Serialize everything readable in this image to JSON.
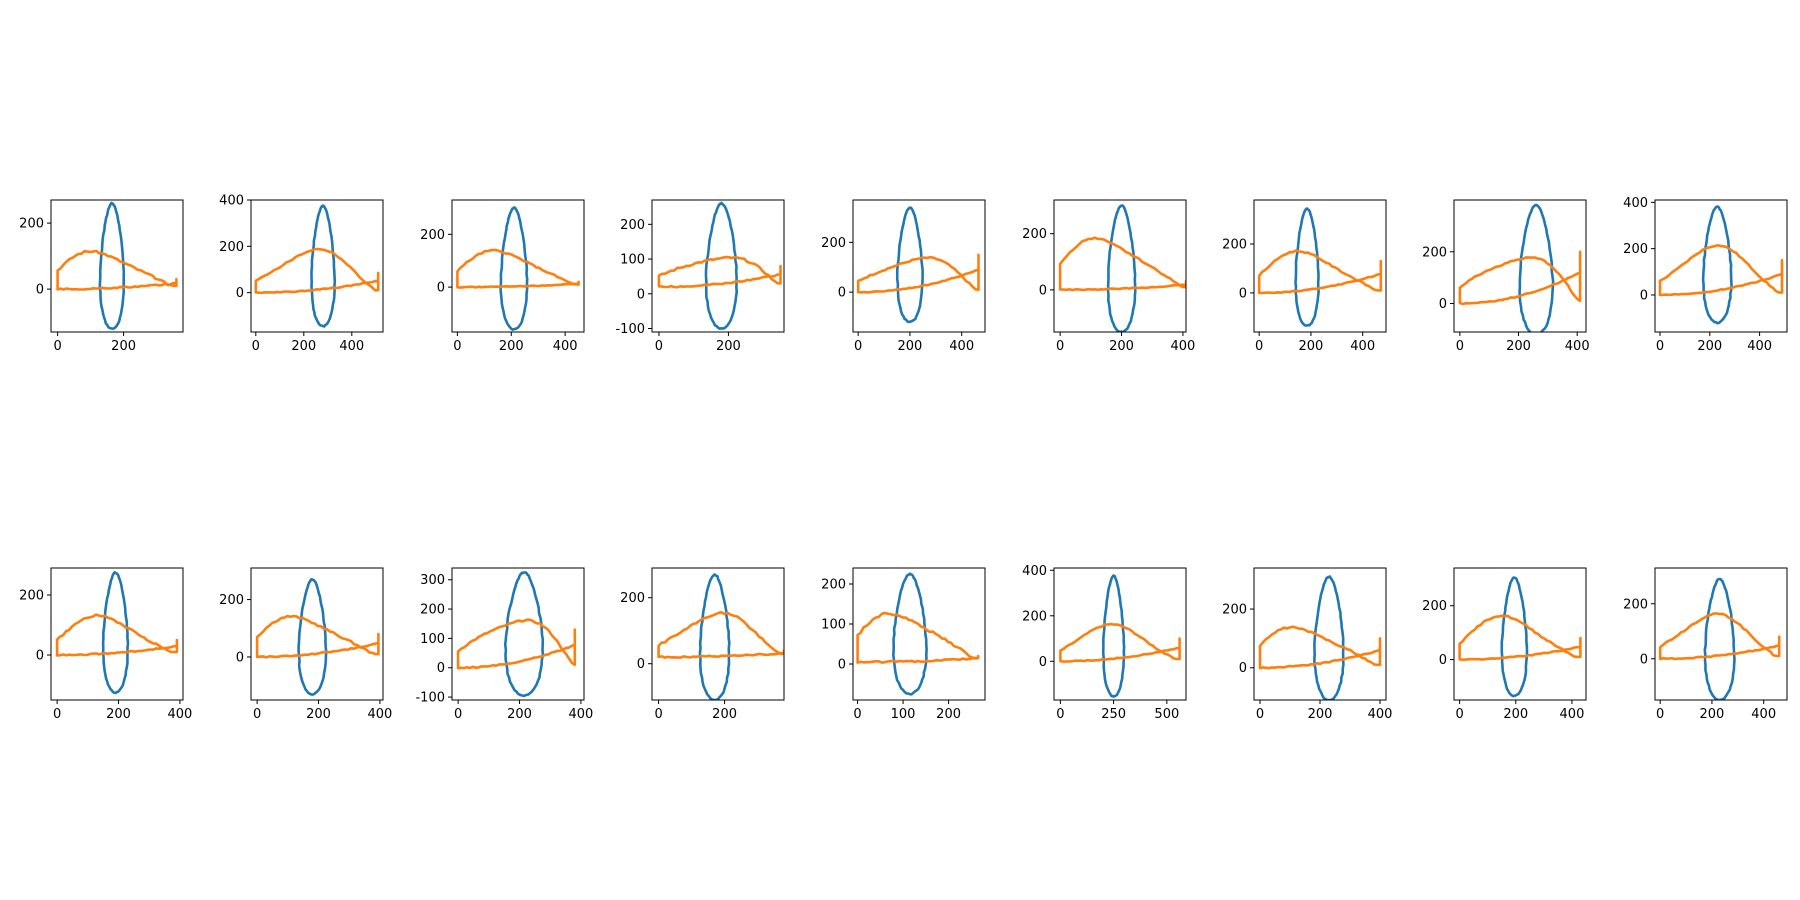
{
  "chart_data": {
    "type": "line",
    "layout": {
      "rows": 2,
      "cols": 9
    },
    "series_colors": [
      "#1f77b4",
      "#ff7f0e"
    ],
    "panels": [
      {
        "xlim": [
          -20,
          380
        ],
        "ylim": [
          -130,
          270
        ],
        "xticks": [
          0,
          200
        ],
        "yticks": [
          0,
          200
        ],
        "blue": {
          "cx": 165,
          "cy": 70,
          "rx": 45,
          "ry": 190
        },
        "orange": {
          "x0": 0,
          "x1": 360,
          "xt": 45,
          "ybase": 0,
          "ytop": 130,
          "yend": 30
        }
      },
      {
        "xlim": [
          -20,
          530
        ],
        "ylim": [
          -170,
          400
        ],
        "xticks": [
          0,
          200,
          400
        ],
        "yticks": [
          0,
          200,
          400
        ],
        "blue": {
          "cx": 280,
          "cy": 115,
          "rx": 60,
          "ry": 260
        },
        "orange": {
          "x0": 0,
          "x1": 510,
          "xt": 320,
          "ybase": 0,
          "ytop": 200,
          "yend": 85
        }
      },
      {
        "xlim": [
          -20,
          470
        ],
        "ylim": [
          -170,
          330
        ],
        "xticks": [
          0,
          200,
          400
        ],
        "yticks": [
          0,
          200
        ],
        "blue": {
          "cx": 210,
          "cy": 70,
          "rx": 60,
          "ry": 230
        },
        "orange": {
          "x0": 0,
          "x1": 450,
          "xt": 80,
          "ybase": 0,
          "ytop": 150,
          "yend": 20
        }
      },
      {
        "xlim": [
          -20,
          360
        ],
        "ylim": [
          -110,
          270
        ],
        "xticks": [
          0,
          200
        ],
        "yticks": [
          -100,
          0,
          100,
          200
        ],
        "blue": {
          "cx": 180,
          "cy": 80,
          "rx": 55,
          "ry": 180
        },
        "orange": {
          "x0": 0,
          "x1": 350,
          "xt": 310,
          "ybase": 20,
          "ytop": 140,
          "yend": 80
        }
      },
      {
        "xlim": [
          -20,
          490
        ],
        "ylim": [
          -160,
          370
        ],
        "xticks": [
          0,
          200,
          400
        ],
        "yticks": [
          0,
          200
        ],
        "blue": {
          "cx": 200,
          "cy": 110,
          "rx": 60,
          "ry": 230
        },
        "orange": {
          "x0": 0,
          "x1": 465,
          "xt": 370,
          "ybase": 0,
          "ytop": 175,
          "yend": 150
        }
      },
      {
        "xlim": [
          -20,
          410
        ],
        "ylim": [
          -150,
          320
        ],
        "xticks": [
          0,
          200,
          400
        ],
        "yticks": [
          0,
          200
        ],
        "blue": {
          "cx": 200,
          "cy": 75,
          "rx": 55,
          "ry": 225
        },
        "orange": {
          "x0": 0,
          "x1": 410,
          "xt": 50,
          "ybase": 0,
          "ytop": 210,
          "yend": 30
        }
      },
      {
        "xlim": [
          -20,
          490
        ],
        "ylim": [
          -160,
          380
        ],
        "xticks": [
          0,
          200,
          400
        ],
        "yticks": [
          0,
          200
        ],
        "blue": {
          "cx": 185,
          "cy": 105,
          "rx": 55,
          "ry": 240
        },
        "orange": {
          "x0": 0,
          "x1": 470,
          "xt": 100,
          "ybase": 0,
          "ytop": 180,
          "yend": 130
        }
      },
      {
        "xlim": [
          -20,
          430
        ],
        "ylim": [
          -110,
          400
        ],
        "xticks": [
          0,
          200,
          400
        ],
        "yticks": [
          0,
          200
        ],
        "blue": {
          "cx": 260,
          "cy": 130,
          "rx": 70,
          "ry": 250
        },
        "orange": {
          "x0": 0,
          "x1": 410,
          "xt": 360,
          "ybase": 0,
          "ytop": 250,
          "yend": 200
        }
      },
      {
        "xlim": [
          -20,
          510
        ],
        "ylim": [
          -160,
          410
        ],
        "xticks": [
          0,
          200,
          400
        ],
        "yticks": [
          0,
          200,
          400
        ],
        "blue": {
          "cx": 230,
          "cy": 130,
          "rx": 70,
          "ry": 250
        },
        "orange": {
          "x0": 0,
          "x1": 490,
          "xt": 260,
          "ybase": 0,
          "ytop": 215,
          "yend": 150
        }
      },
      {
        "xlim": [
          -20,
          410
        ],
        "ylim": [
          -150,
          290
        ],
        "xticks": [
          0,
          200,
          400
        ],
        "yticks": [
          0,
          200
        ],
        "blue": {
          "cx": 190,
          "cy": 75,
          "rx": 50,
          "ry": 200
        },
        "orange": {
          "x0": 0,
          "x1": 390,
          "xt": 100,
          "ybase": 0,
          "ytop": 135,
          "yend": 50
        }
      },
      {
        "xlim": [
          -20,
          410
        ],
        "ylim": [
          -150,
          310
        ],
        "xticks": [
          0,
          200,
          400
        ],
        "yticks": [
          0,
          200
        ],
        "blue": {
          "cx": 180,
          "cy": 70,
          "rx": 55,
          "ry": 200
        },
        "orange": {
          "x0": 0,
          "x1": 395,
          "xt": 50,
          "ybase": 0,
          "ytop": 160,
          "yend": 80
        }
      },
      {
        "xlim": [
          -20,
          410
        ],
        "ylim": [
          -110,
          340
        ],
        "xticks": [
          0,
          200,
          400
        ],
        "yticks": [
          -100,
          0,
          100,
          200,
          300
        ],
        "blue": {
          "cx": 215,
          "cy": 115,
          "rx": 75,
          "ry": 210
        },
        "orange": {
          "x0": 0,
          "x1": 380,
          "xt": 330,
          "ybase": 0,
          "ytop": 225,
          "yend": 130
        }
      },
      {
        "xlim": [
          -20,
          380
        ],
        "ylim": [
          -110,
          290
        ],
        "xticks": [
          0,
          200
        ],
        "yticks": [
          0,
          200
        ],
        "blue": {
          "cx": 170,
          "cy": 80,
          "rx": 55,
          "ry": 190
        },
        "orange": {
          "x0": 0,
          "x1": 380,
          "xt": 230,
          "ybase": 20,
          "ytop": 160,
          "yend": 40
        }
      },
      {
        "xlim": [
          -10,
          280
        ],
        "ylim": [
          -90,
          240
        ],
        "xticks": [
          0,
          100,
          200
        ],
        "yticks": [
          0,
          100,
          200
        ],
        "blue": {
          "cx": 115,
          "cy": 75,
          "rx": 45,
          "ry": 150
        },
        "orange": {
          "x0": 0,
          "x1": 265,
          "xt": 20,
          "ybase": 5,
          "ytop": 150,
          "yend": 20
        }
      },
      {
        "xlim": [
          -30,
          590
        ],
        "ylim": [
          -170,
          410
        ],
        "xticks": [
          0,
          250,
          500
        ],
        "yticks": [
          0,
          200,
          400
        ],
        "blue": {
          "cx": 250,
          "cy": 110,
          "rx": 60,
          "ry": 265
        },
        "orange": {
          "x0": 0,
          "x1": 560,
          "xt": 250,
          "ybase": 0,
          "ytop": 160,
          "yend": 100
        }
      },
      {
        "xlim": [
          -20,
          420
        ],
        "ylim": [
          -110,
          340
        ],
        "xticks": [
          0,
          200,
          400
        ],
        "yticks": [
          0,
          200
        ],
        "blue": {
          "cx": 230,
          "cy": 100,
          "rx": 60,
          "ry": 210
        },
        "orange": {
          "x0": 0,
          "x1": 400,
          "xt": 30,
          "ybase": 0,
          "ytop": 165,
          "yend": 100
        }
      },
      {
        "xlim": [
          -20,
          450
        ],
        "ylim": [
          -150,
          340
        ],
        "xticks": [
          0,
          200,
          400
        ],
        "yticks": [
          0,
          200
        ],
        "blue": {
          "cx": 195,
          "cy": 85,
          "rx": 55,
          "ry": 220
        },
        "orange": {
          "x0": 0,
          "x1": 430,
          "xt": 120,
          "ybase": 0,
          "ytop": 165,
          "yend": 80
        }
      },
      {
        "xlim": [
          -20,
          490
        ],
        "ylim": [
          -150,
          330
        ],
        "xticks": [
          0,
          200,
          400
        ],
        "yticks": [
          0,
          200
        ],
        "blue": {
          "cx": 230,
          "cy": 70,
          "rx": 70,
          "ry": 220
        },
        "orange": {
          "x0": 0,
          "x1": 460,
          "xt": 250,
          "ybase": 0,
          "ytop": 165,
          "yend": 80
        }
      }
    ]
  }
}
